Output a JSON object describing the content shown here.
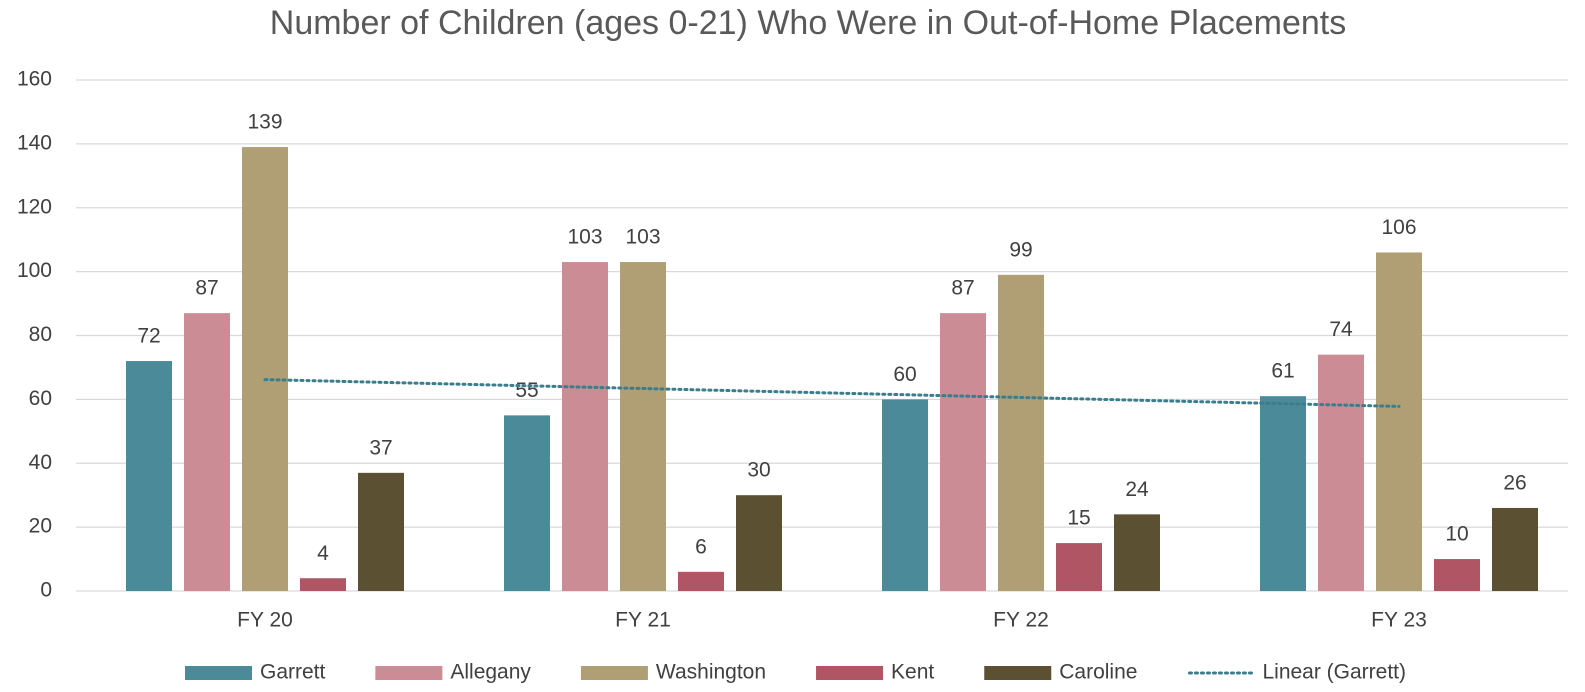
{
  "chart_data": {
    "type": "bar",
    "title": "Number of Children (ages 0-21) Who Were in Out-of-Home Placements",
    "categories": [
      "FY 20",
      "FY 21",
      "FY 22",
      "FY 23"
    ],
    "series": [
      {
        "name": "Garrett",
        "color": "#4a8a99",
        "values": [
          72,
          55,
          60,
          61
        ],
        "trendline": {
          "name": "Linear (Garrett)",
          "type": "linear",
          "color": "#3a7d8c",
          "style": "dotted"
        }
      },
      {
        "name": "Allegany",
        "color": "#cc8c95",
        "values": [
          87,
          103,
          87,
          74
        ]
      },
      {
        "name": "Washington",
        "color": "#b09e74",
        "values": [
          139,
          103,
          99,
          106
        ]
      },
      {
        "name": "Kent",
        "color": "#b05563",
        "values": [
          4,
          6,
          15,
          10
        ]
      },
      {
        "name": "Caroline",
        "color": "#5c5033",
        "values": [
          37,
          30,
          24,
          26
        ]
      }
    ],
    "ylim": [
      0,
      160
    ],
    "yticks": [
      0,
      20,
      40,
      60,
      80,
      100,
      120,
      140,
      160
    ],
    "grid": true,
    "legend": "bottom"
  }
}
